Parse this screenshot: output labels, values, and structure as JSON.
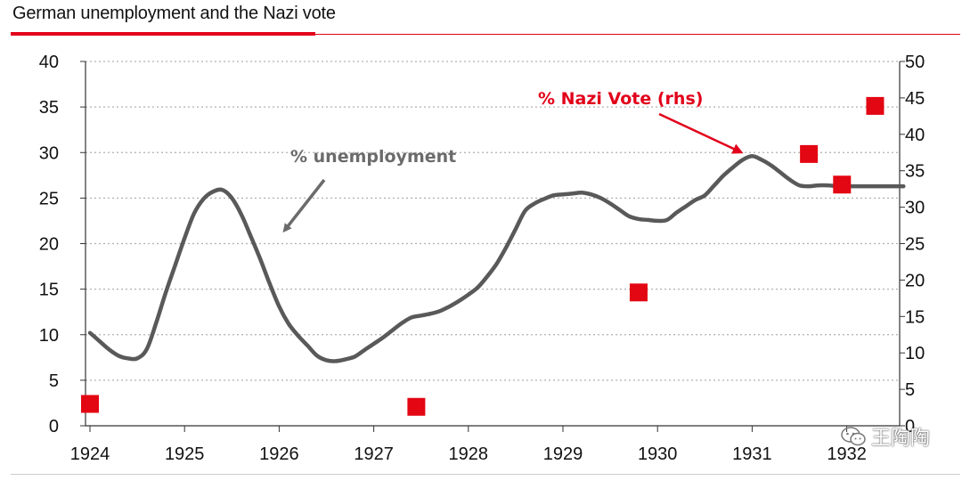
{
  "title": "German unemployment and the Nazi vote",
  "watermark": "王陶陶",
  "colors": {
    "accent": "#e2001a",
    "line": "#595959",
    "marker": "#e30613",
    "grid": "#b0b0b0"
  },
  "chart_data": {
    "type": "line",
    "title": "German unemployment and the Nazi vote",
    "xlabel": "",
    "ylabel": "",
    "xlim": [
      1924,
      1932.6
    ],
    "ylim": [
      0,
      40
    ],
    "y2lim": [
      0,
      50
    ],
    "x_ticks": [
      "1924",
      "1925",
      "1926",
      "1927",
      "1928",
      "1929",
      "1930",
      "1931",
      "1932"
    ],
    "y_ticks": [
      "0",
      "5",
      "10",
      "15",
      "20",
      "25",
      "30",
      "35",
      "40"
    ],
    "y2_ticks": [
      "0",
      "5",
      "10",
      "15",
      "20",
      "25",
      "30",
      "35",
      "40",
      "45",
      "50"
    ],
    "grid": true,
    "series": [
      {
        "name": "% unemployment",
        "axis": "left",
        "style": "line",
        "x": [
          1924.0,
          1924.1,
          1924.2,
          1924.3,
          1924.4,
          1924.5,
          1924.6,
          1924.7,
          1924.8,
          1924.9,
          1925.0,
          1925.1,
          1925.2,
          1925.3,
          1925.4,
          1925.5,
          1925.6,
          1925.7,
          1925.8,
          1925.9,
          1926.0,
          1926.1,
          1926.2,
          1926.3,
          1926.4,
          1926.5,
          1926.6,
          1926.7,
          1926.8,
          1926.9,
          1927.0,
          1927.1,
          1927.2,
          1927.3,
          1927.4,
          1927.5,
          1927.6,
          1927.7,
          1927.8,
          1927.9,
          1928.0,
          1928.1,
          1928.2,
          1928.3,
          1928.4,
          1928.5,
          1928.6,
          1928.7,
          1928.8,
          1928.9,
          1929.0,
          1929.1,
          1929.2,
          1929.3,
          1929.4,
          1929.5,
          1929.6,
          1929.7,
          1929.8,
          1929.9,
          1930.0,
          1930.1,
          1930.2,
          1930.3,
          1930.4,
          1930.5,
          1930.6,
          1930.7,
          1930.8,
          1930.9,
          1931.0,
          1931.1,
          1931.2,
          1931.3,
          1931.4,
          1931.5,
          1931.6,
          1931.7,
          1931.8,
          1931.9,
          1932.0,
          1932.1,
          1932.2,
          1932.3,
          1932.4,
          1932.5,
          1932.6
        ],
        "values": [
          10.2,
          9.3,
          8.4,
          7.7,
          7.4,
          7.4,
          8.4,
          11.3,
          14.6,
          17.6,
          20.6,
          23.3,
          24.9,
          25.7,
          25.9,
          25.0,
          23.2,
          20.8,
          18.3,
          15.6,
          13.1,
          11.2,
          9.9,
          8.8,
          7.7,
          7.2,
          7.1,
          7.3,
          7.6,
          8.3,
          9.0,
          9.7,
          10.5,
          11.3,
          11.9,
          12.1,
          12.3,
          12.6,
          13.1,
          13.7,
          14.4,
          15.2,
          16.4,
          17.8,
          19.6,
          21.6,
          23.6,
          24.4,
          24.9,
          25.3,
          25.4,
          25.5,
          25.6,
          25.4,
          25.0,
          24.4,
          23.7,
          23.0,
          22.7,
          22.6,
          22.5,
          22.6,
          23.4,
          24.1,
          24.8,
          25.3,
          26.4,
          27.5,
          28.4,
          29.2,
          29.6,
          29.2,
          28.6,
          27.8,
          27.0,
          26.4,
          26.3,
          26.4,
          26.4,
          26.3,
          26.3,
          26.3,
          26.3,
          26.3,
          26.3,
          26.3,
          26.3
        ],
        "label": "% unemployment"
      },
      {
        "name": "% Nazi Vote (rhs)",
        "axis": "right",
        "style": "markers",
        "x": [
          1924.0,
          1927.45,
          1929.8,
          1931.6,
          1931.95,
          1932.3
        ],
        "values": [
          3.0,
          2.6,
          18.3,
          37.3,
          33.1,
          43.9
        ],
        "label": "% Nazi Vote (rhs)"
      }
    ],
    "annotations": [
      {
        "text": "% unemployment",
        "points_to": "unemployment line near 1926"
      },
      {
        "text": "% Nazi Vote (rhs)",
        "points_to": "Nazi vote markers near 1931"
      }
    ]
  }
}
